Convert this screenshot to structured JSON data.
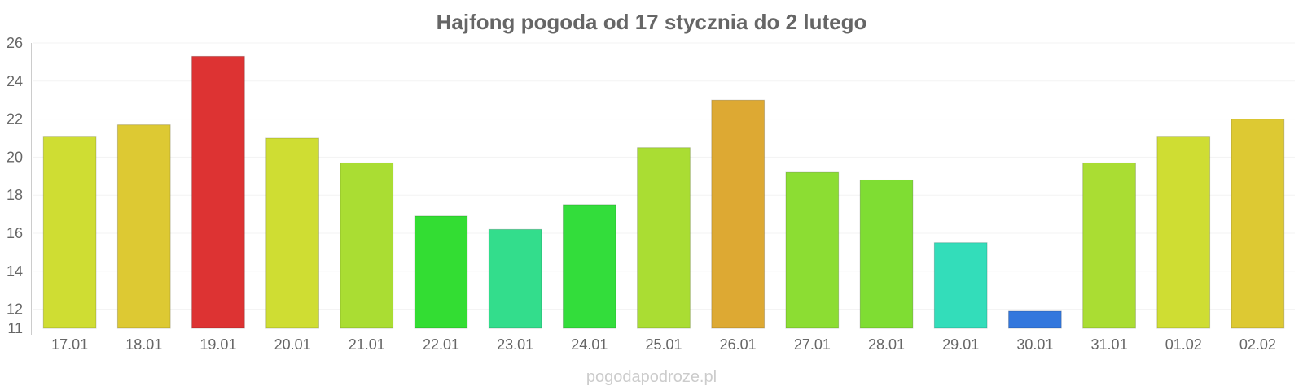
{
  "watermark": "pogodapodroze.pl",
  "chart_data": {
    "type": "bar",
    "title": "Hajfong pogoda od 17 stycznia do 2 lutego",
    "xlabel": "",
    "ylabel": "",
    "ylim": [
      11,
      26
    ],
    "yticks": [
      11,
      12,
      14,
      16,
      18,
      20,
      22,
      24,
      26
    ],
    "grid": true,
    "categories": [
      "17.01",
      "18.01",
      "19.01",
      "20.01",
      "21.01",
      "22.01",
      "23.01",
      "24.01",
      "25.01",
      "26.01",
      "27.01",
      "28.01",
      "29.01",
      "30.01",
      "31.01",
      "01.02",
      "02.02"
    ],
    "values": [
      21.1,
      21.7,
      25.3,
      21.0,
      19.7,
      16.9,
      16.2,
      17.5,
      20.5,
      23.0,
      19.2,
      18.8,
      15.5,
      11.9,
      19.7,
      21.1,
      22.0
    ],
    "colors": [
      "#cfdd33",
      "#ddc933",
      "#dd3333",
      "#cfdd33",
      "#aadd33",
      "#33dd33",
      "#33dd8c",
      "#33dd3b",
      "#aadd33",
      "#dda933",
      "#8cdd33",
      "#7fdd33",
      "#33ddba",
      "#3377dd",
      "#aadd33",
      "#cfdd33",
      "#ddc933"
    ]
  }
}
